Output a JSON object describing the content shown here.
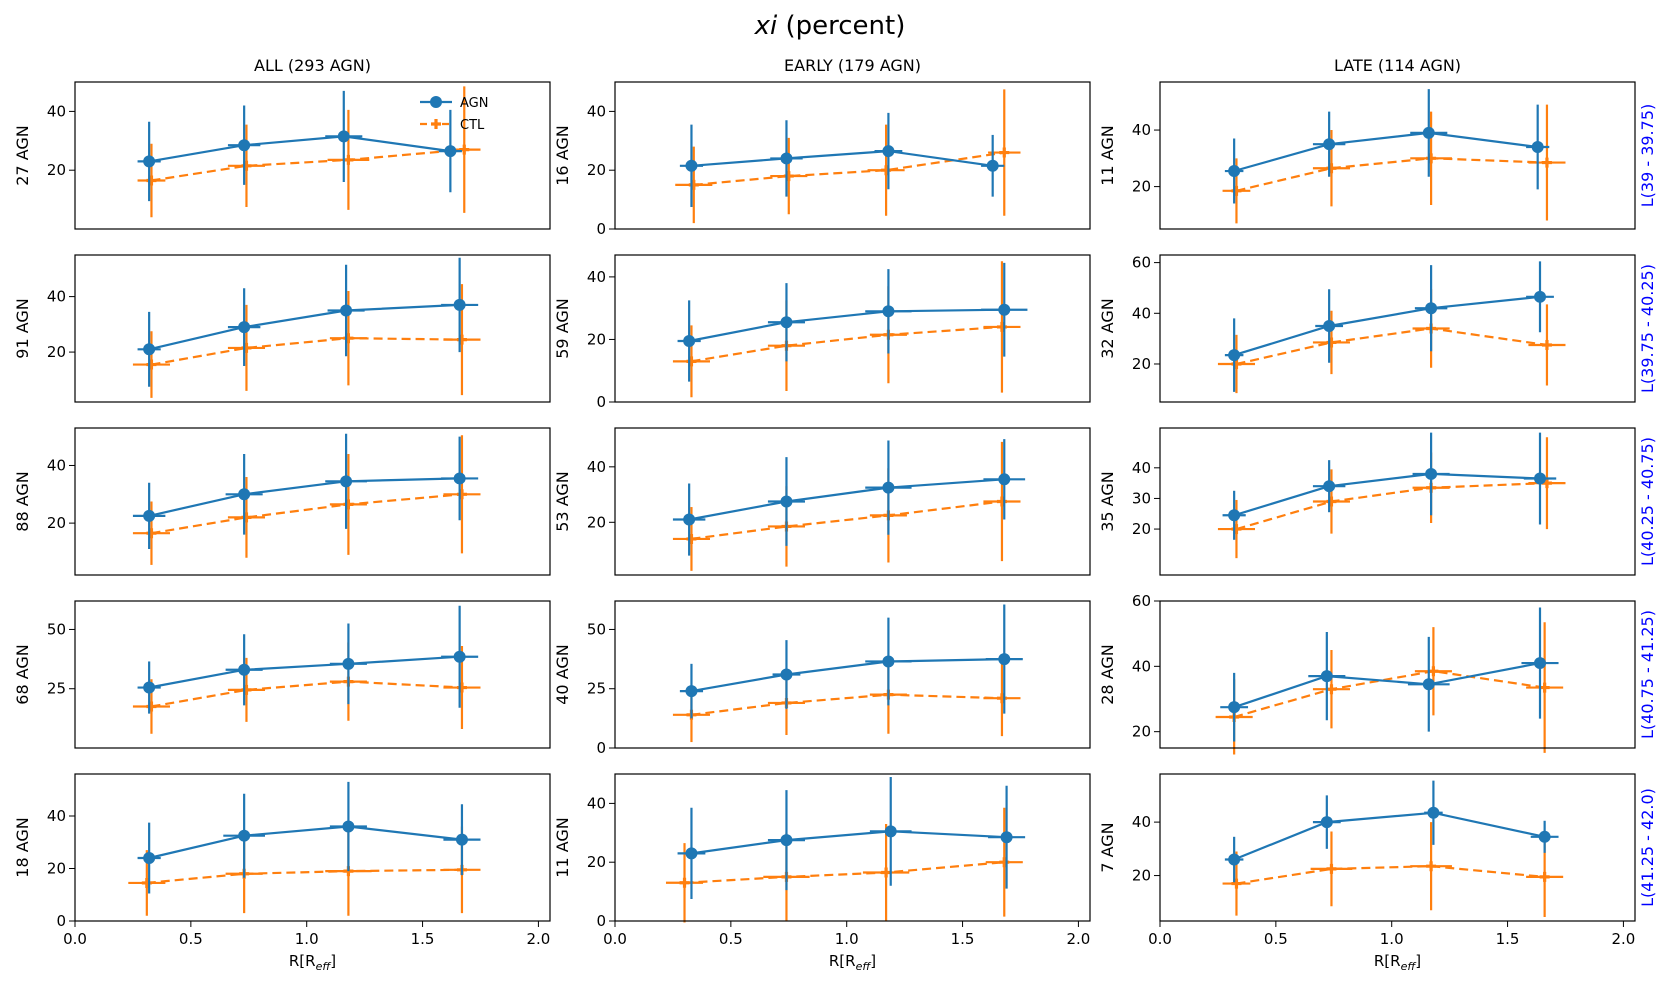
{
  "figure": {
    "title_italic": "xi",
    "title_rest": " (percent)",
    "xlabel_main": "R[R",
    "xlabel_sub": "eff",
    "xlabel_end": "]",
    "xticks": [
      0.0,
      0.5,
      1.0,
      1.5,
      2.0
    ],
    "xtick_labels": [
      "0.0",
      "0.5",
      "1.0",
      "1.5",
      "2.0"
    ],
    "xlim": [
      0,
      2.05
    ],
    "colors": {
      "agn": "#1f77b4",
      "ctl": "#ff7f0e",
      "luminosity_label": "#0000ff"
    },
    "legend": {
      "agn": "AGN",
      "ctl": "CTL",
      "location": "top-right of first panel"
    },
    "columns": [
      "ALL (293 AGN)",
      "EARLY (179 AGN)",
      "LATE (114 AGN)"
    ],
    "rows": [
      "L(39 - 39.75)",
      "L(39.75 - 40.25)",
      "L(40.25 - 40.75)",
      "L(40.75 - 41.25)",
      "L(41.25 - 42.0)"
    ]
  },
  "chart_data": [
    {
      "type": "line",
      "row": 0,
      "col": 0,
      "panel_label": "27 AGN",
      "ylim": [
        0,
        50
      ],
      "yticks": [
        20,
        40
      ],
      "series": [
        {
          "name": "AGN",
          "x": [
            0.32,
            0.73,
            1.16,
            1.62
          ],
          "y": [
            23,
            28.5,
            31.5,
            26.5
          ],
          "yerr": [
            13.5,
            13.5,
            15.5,
            14
          ],
          "xerr": [
            0.05,
            0.07,
            0.08,
            0.05
          ]
        },
        {
          "name": "CTL",
          "x": [
            0.33,
            0.74,
            1.18,
            1.68
          ],
          "y": [
            16.5,
            21.5,
            23.5,
            27
          ],
          "yerr": [
            12.5,
            14,
            17,
            21.5
          ],
          "xerr": [
            0.06,
            0.08,
            0.09,
            0.07
          ]
        }
      ]
    },
    {
      "type": "line",
      "row": 0,
      "col": 1,
      "panel_label": "16 AGN",
      "ylim": [
        0,
        50
      ],
      "yticks": [
        0,
        20,
        40
      ],
      "series": [
        {
          "name": "AGN",
          "x": [
            0.33,
            0.74,
            1.18,
            1.63
          ],
          "y": [
            21.5,
            24,
            26.5,
            21.5
          ],
          "yerr": [
            14,
            13,
            13,
            10.5
          ],
          "xerr": [
            0.05,
            0.07,
            0.06,
            0.05
          ]
        },
        {
          "name": "CTL",
          "x": [
            0.34,
            0.75,
            1.17,
            1.68
          ],
          "y": [
            15,
            18,
            20,
            26
          ],
          "yerr": [
            13,
            13,
            15.5,
            21.5
          ],
          "xerr": [
            0.08,
            0.08,
            0.08,
            0.07
          ]
        }
      ]
    },
    {
      "type": "line",
      "row": 0,
      "col": 2,
      "panel_label": "11 AGN",
      "ylim": [
        5,
        57
      ],
      "yticks": [
        20,
        40
      ],
      "series": [
        {
          "name": "AGN",
          "x": [
            0.32,
            0.73,
            1.16,
            1.63
          ],
          "y": [
            25.5,
            35,
            39,
            34
          ],
          "yerr": [
            11.5,
            11.5,
            15.5,
            15
          ],
          "xerr": [
            0.04,
            0.07,
            0.08,
            0.05
          ]
        },
        {
          "name": "CTL",
          "x": [
            0.33,
            0.74,
            1.17,
            1.67
          ],
          "y": [
            18.5,
            26.5,
            30,
            28.5
          ],
          "yerr": [
            11.5,
            13.5,
            16.5,
            20.5
          ],
          "xerr": [
            0.06,
            0.08,
            0.09,
            0.08
          ]
        }
      ]
    },
    {
      "type": "line",
      "row": 1,
      "col": 0,
      "panel_label": "91 AGN",
      "ylim": [
        2,
        55
      ],
      "yticks": [
        20,
        40
      ],
      "series": [
        {
          "name": "AGN",
          "x": [
            0.32,
            0.73,
            1.17,
            1.66
          ],
          "y": [
            21,
            29,
            35,
            37
          ],
          "yerr": [
            13.5,
            14,
            16.5,
            17
          ],
          "xerr": [
            0.05,
            0.07,
            0.08,
            0.08
          ]
        },
        {
          "name": "CTL",
          "x": [
            0.33,
            0.74,
            1.18,
            1.67
          ],
          "y": [
            15.5,
            21.5,
            25,
            24.5
          ],
          "yerr": [
            12,
            15.5,
            17,
            20
          ]
        }
      ]
    },
    {
      "type": "line",
      "row": 1,
      "col": 1,
      "panel_label": "59 AGN",
      "ylim": [
        0,
        47
      ],
      "yticks": [
        0,
        20,
        40
      ],
      "series": [
        {
          "name": "AGN",
          "x": [
            0.32,
            0.74,
            1.18,
            1.68
          ],
          "y": [
            19.5,
            25.5,
            29,
            29.5
          ],
          "yerr": [
            13,
            12.5,
            13.5,
            15
          ],
          "xerr": [
            0.05,
            0.08,
            0.1,
            0.1
          ]
        },
        {
          "name": "CTL",
          "x": [
            0.33,
            0.74,
            1.18,
            1.67
          ],
          "y": [
            13,
            18,
            21.5,
            24
          ],
          "yerr": [
            11.5,
            14.5,
            15.5,
            21
          ]
        }
      ]
    },
    {
      "type": "line",
      "row": 1,
      "col": 2,
      "panel_label": "32 AGN",
      "ylim": [
        5,
        63
      ],
      "yticks": [
        20,
        40,
        60
      ],
      "series": [
        {
          "name": "AGN",
          "x": [
            0.32,
            0.73,
            1.17,
            1.64
          ],
          "y": [
            23.5,
            35,
            42,
            46.5
          ],
          "yerr": [
            14.5,
            14.5,
            17,
            14
          ],
          "xerr": [
            0.04,
            0.06,
            0.07,
            0.06
          ]
        },
        {
          "name": "CTL",
          "x": [
            0.33,
            0.74,
            1.17,
            1.67
          ],
          "y": [
            20,
            28.5,
            34,
            27.5
          ],
          "yerr": [
            11.5,
            12.5,
            15.5,
            16
          ]
        }
      ]
    },
    {
      "type": "line",
      "row": 2,
      "col": 0,
      "panel_label": "88 AGN",
      "ylim": [
        2,
        53
      ],
      "yticks": [
        20,
        40
      ],
      "series": [
        {
          "name": "AGN",
          "x": [
            0.32,
            0.73,
            1.17,
            1.66
          ],
          "y": [
            22.5,
            30,
            34.5,
            35.5
          ],
          "yerr": [
            11.5,
            14,
            16.5,
            14.5
          ],
          "xerr": [
            0.07,
            0.08,
            0.09,
            0.08
          ]
        },
        {
          "name": "CTL",
          "x": [
            0.33,
            0.74,
            1.18,
            1.67
          ],
          "y": [
            16.5,
            22,
            26.5,
            30
          ],
          "yerr": [
            11,
            14,
            17.5,
            20.5
          ]
        }
      ]
    },
    {
      "type": "line",
      "row": 2,
      "col": 1,
      "panel_label": "53 AGN",
      "ylim": [
        1,
        54
      ],
      "yticks": [
        20,
        40
      ],
      "series": [
        {
          "name": "AGN",
          "x": [
            0.32,
            0.74,
            1.18,
            1.68
          ],
          "y": [
            21,
            27.5,
            32.5,
            35.5
          ],
          "yerr": [
            13,
            16,
            17,
            14.5
          ],
          "xerr": [
            0.07,
            0.08,
            0.1,
            0.09
          ]
        },
        {
          "name": "CTL",
          "x": [
            0.33,
            0.74,
            1.18,
            1.67
          ],
          "y": [
            14,
            18.5,
            22.5,
            27.5
          ],
          "yerr": [
            11.5,
            14.5,
            17,
            21.5
          ]
        }
      ]
    },
    {
      "type": "line",
      "row": 2,
      "col": 2,
      "panel_label": "35 AGN",
      "ylim": [
        5,
        53
      ],
      "yticks": [
        20,
        30,
        40
      ],
      "series": [
        {
          "name": "AGN",
          "x": [
            0.32,
            0.73,
            1.17,
            1.64
          ],
          "y": [
            24.5,
            34,
            38,
            36.5
          ],
          "yerr": [
            8,
            8.5,
            13.5,
            15
          ],
          "xerr": [
            0.05,
            0.07,
            0.08,
            0.07
          ]
        },
        {
          "name": "CTL",
          "x": [
            0.33,
            0.74,
            1.17,
            1.67
          ],
          "y": [
            20,
            29,
            33.5,
            35
          ],
          "yerr": [
            9.5,
            10.5,
            11.5,
            15
          ]
        }
      ]
    },
    {
      "type": "line",
      "row": 3,
      "col": 0,
      "panel_label": "68 AGN",
      "ylim": [
        0,
        62
      ],
      "yticks": [
        25,
        50
      ],
      "series": [
        {
          "name": "AGN",
          "x": [
            0.32,
            0.73,
            1.18,
            1.66
          ],
          "y": [
            25.5,
            33,
            35.5,
            38.5
          ],
          "yerr": [
            11,
            15,
            17,
            21.5
          ],
          "xerr": [
            0.05,
            0.08,
            0.08,
            0.08
          ]
        },
        {
          "name": "CTL",
          "x": [
            0.33,
            0.74,
            1.18,
            1.67
          ],
          "y": [
            17.5,
            24.5,
            28,
            25.5
          ],
          "yerr": [
            11.5,
            13.5,
            16.5,
            17.5
          ]
        }
      ]
    },
    {
      "type": "line",
      "row": 3,
      "col": 1,
      "panel_label": "40 AGN",
      "ylim": [
        0,
        62
      ],
      "yticks": [
        0,
        25,
        50
      ],
      "series": [
        {
          "name": "AGN",
          "x": [
            0.33,
            0.74,
            1.18,
            1.68
          ],
          "y": [
            24,
            31,
            36.5,
            37.5
          ],
          "yerr": [
            11.5,
            14.5,
            18.5,
            23
          ],
          "xerr": [
            0.05,
            0.06,
            0.1,
            0.08
          ]
        },
        {
          "name": "CTL",
          "x": [
            0.33,
            0.74,
            1.18,
            1.67
          ],
          "y": [
            14,
            19,
            22.5,
            21
          ],
          "yerr": [
            11.5,
            13.5,
            16.5,
            16
          ]
        }
      ]
    },
    {
      "type": "line",
      "row": 3,
      "col": 2,
      "panel_label": "28 AGN",
      "ylim": [
        15,
        60
      ],
      "yticks": [
        20,
        40,
        60
      ],
      "series": [
        {
          "name": "AGN",
          "x": [
            0.32,
            0.72,
            1.16,
            1.64
          ],
          "y": [
            27.5,
            37,
            34.5,
            41
          ],
          "yerr": [
            10.5,
            13.5,
            14.5,
            17
          ],
          "xerr": [
            0.06,
            0.08,
            0.09,
            0.08
          ]
        },
        {
          "name": "CTL",
          "x": [
            0.32,
            0.74,
            1.18,
            1.66
          ],
          "y": [
            24.5,
            33,
            38.5,
            33.5
          ],
          "yerr": [
            11.5,
            12,
            13.5,
            20
          ]
        }
      ]
    },
    {
      "type": "line",
      "row": 4,
      "col": 0,
      "panel_label": "18 AGN",
      "ylim": [
        0,
        56
      ],
      "yticks": [
        0,
        20,
        40
      ],
      "series": [
        {
          "name": "AGN",
          "x": [
            0.32,
            0.73,
            1.18,
            1.67
          ],
          "y": [
            24,
            32.5,
            36,
            31
          ],
          "yerr": [
            13.5,
            16,
            17,
            13.5
          ],
          "xerr": [
            0.05,
            0.09,
            0.08,
            0.08
          ]
        },
        {
          "name": "CTL",
          "x": [
            0.31,
            0.73,
            1.18,
            1.67
          ],
          "y": [
            14.5,
            18,
            19,
            19.5
          ],
          "yerr": [
            12.5,
            15,
            17,
            16.5
          ],
          "xerr": [
            0.08,
            0.08,
            0.1,
            0.08
          ]
        }
      ]
    },
    {
      "type": "line",
      "row": 4,
      "col": 1,
      "panel_label": "11 AGN",
      "ylim": [
        0,
        50
      ],
      "yticks": [
        0,
        20,
        40
      ],
      "series": [
        {
          "name": "AGN",
          "x": [
            0.33,
            0.74,
            1.19,
            1.69
          ],
          "y": [
            23,
            27.5,
            30.5,
            28.5
          ],
          "yerr": [
            15.5,
            17,
            18.5,
            17.5
          ],
          "xerr": [
            0.06,
            0.08,
            0.09,
            0.08
          ]
        },
        {
          "name": "CTL",
          "x": [
            0.3,
            0.74,
            1.17,
            1.68
          ],
          "y": [
            13,
            15,
            16.5,
            20
          ],
          "yerr": [
            13.5,
            15,
            16.5,
            18.5
          ],
          "xerr": [
            0.08,
            0.1,
            0.1,
            0.08
          ]
        }
      ]
    },
    {
      "type": "line",
      "row": 4,
      "col": 2,
      "panel_label": "7 AGN",
      "ylim": [
        3,
        58
      ],
      "yticks": [
        20,
        40
      ],
      "series": [
        {
          "name": "AGN",
          "x": [
            0.32,
            0.72,
            1.18,
            1.66
          ],
          "y": [
            26,
            40,
            43.5,
            34.5
          ],
          "yerr": [
            8.5,
            10,
            12,
            6
          ],
          "xerr": [
            0.04,
            0.06,
            0.04,
            0.06
          ]
        },
        {
          "name": "CTL",
          "x": [
            0.33,
            0.74,
            1.17,
            1.66
          ],
          "y": [
            17,
            22.5,
            23.5,
            19.5
          ],
          "yerr": [
            12,
            14,
            16.5,
            15
          ],
          "xerr": [
            0.06,
            0.09,
            0.09,
            0.08
          ]
        }
      ]
    }
  ]
}
